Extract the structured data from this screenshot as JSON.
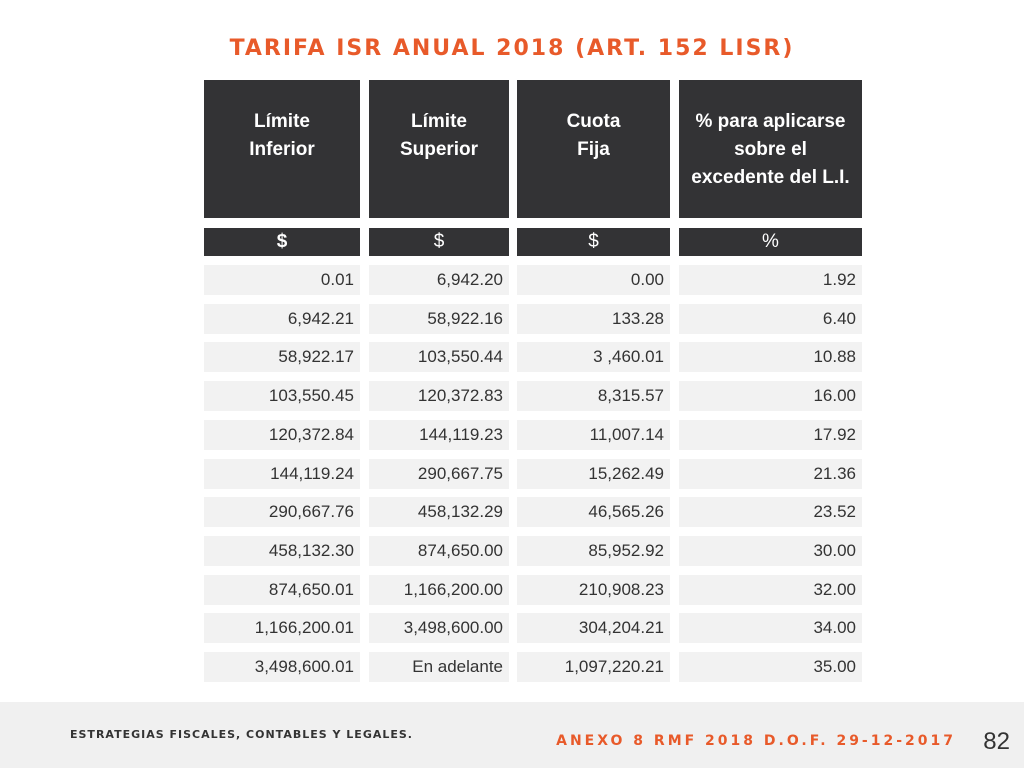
{
  "title": "TARIFA ISR ANUAL 2018 (ART. 152 LISR)",
  "table": {
    "headers": [
      {
        "lines": [
          "Límite",
          "Inferior"
        ]
      },
      {
        "lines": [
          "Límite",
          "Superior"
        ]
      },
      {
        "lines": [
          "Cuota",
          "Fija"
        ]
      },
      {
        "lines": [
          "% para aplicarse",
          "sobre el",
          "excedente del L.I."
        ]
      }
    ],
    "units": [
      "$",
      "$",
      "$",
      "%"
    ],
    "rows": [
      [
        "0.01",
        "6,942.20",
        "0.00",
        "1.92"
      ],
      [
        "6,942.21",
        "58,922.16",
        "133.28",
        "6.40"
      ],
      [
        "58,922.17",
        "103,550.44",
        "3 ,460.01",
        "10.88"
      ],
      [
        "103,550.45",
        "120,372.83",
        "8,315.57",
        "16.00"
      ],
      [
        "120,372.84",
        "144,119.23",
        "11,007.14",
        "17.92"
      ],
      [
        "144,119.24",
        "290,667.75",
        "15,262.49",
        "21.36"
      ],
      [
        "290,667.76",
        "458,132.29",
        "46,565.26",
        "23.52"
      ],
      [
        "458,132.30",
        "874,650.00",
        "85,952.92",
        "30.00"
      ],
      [
        "874,650.01",
        "1,166,200.00",
        "210,908.23",
        "32.00"
      ],
      [
        "1,166,200.01",
        "3,498,600.00",
        "304,204.21",
        "34.00"
      ],
      [
        "3,498,600.01",
        "En adelante",
        "1,097,220.21",
        "35.00"
      ]
    ]
  },
  "footer": {
    "left_text": "ESTRATEGIAS FISCALES, CONTABLES Y LEGALES.",
    "right_text": "ANEXO 8 RMF 2018 D.O.F. 29-12-2017",
    "page_number": "82"
  },
  "colors": {
    "accent": "#e85a2a",
    "header_bg": "#333335",
    "cell_bg": "#f2f2f2",
    "footer_bg": "#f0f0f0"
  }
}
